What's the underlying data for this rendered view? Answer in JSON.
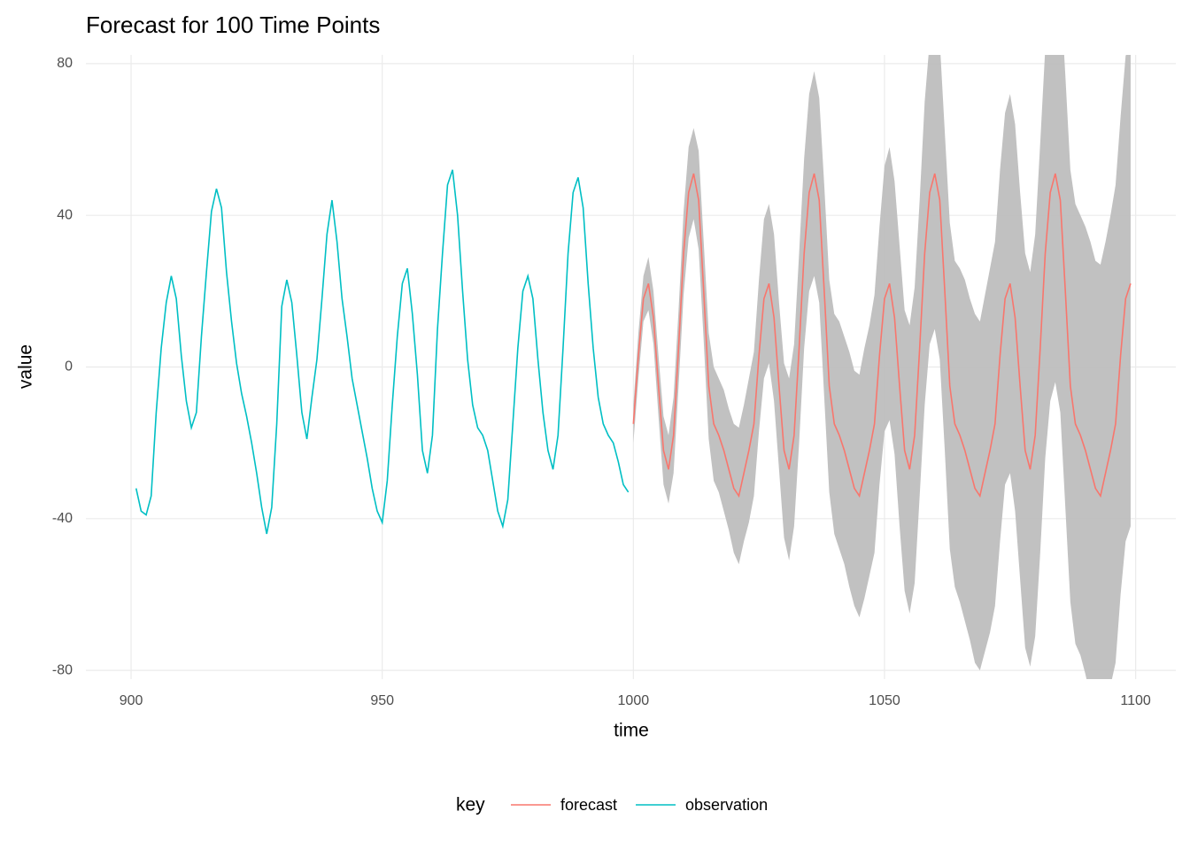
{
  "chart_data": {
    "type": "line",
    "title": "Forecast for 100 Time Points",
    "x_label": "time",
    "y_label": "value",
    "legend_title": "key",
    "grid": true,
    "legend": "bottom",
    "xlim": [
      891,
      1108
    ],
    "ylim": [
      -82.3,
      82.3
    ],
    "xticks": [
      900,
      950,
      1000,
      1050,
      1100
    ],
    "yticks": [
      -80,
      -40,
      0,
      40,
      80
    ],
    "band_color": "#bebebe",
    "series": [
      {
        "name": "forecast",
        "color": "#F8766D",
        "x": [
          1000,
          1001,
          1002,
          1003,
          1004,
          1005,
          1006,
          1007,
          1008,
          1009,
          1010,
          1011,
          1012,
          1013,
          1014,
          1015,
          1016,
          1017,
          1018,
          1019,
          1020,
          1021,
          1022,
          1023,
          1024,
          1025,
          1026,
          1027,
          1028,
          1029,
          1030,
          1031,
          1032,
          1033,
          1034,
          1035,
          1036,
          1037,
          1038,
          1039,
          1040,
          1041,
          1042,
          1043,
          1044,
          1045,
          1046,
          1047,
          1048,
          1049,
          1050,
          1051,
          1052,
          1053,
          1054,
          1055,
          1056,
          1057,
          1058,
          1059,
          1060,
          1061,
          1062,
          1063,
          1064,
          1065,
          1066,
          1067,
          1068,
          1069,
          1070,
          1071,
          1072,
          1073,
          1074,
          1075,
          1076,
          1077,
          1078,
          1079,
          1080,
          1081,
          1082,
          1083,
          1084,
          1085,
          1086,
          1087,
          1088,
          1089,
          1090,
          1091,
          1092,
          1093,
          1094,
          1095,
          1096,
          1097,
          1098,
          1099
        ],
        "values": [
          -15,
          3,
          18,
          22,
          13,
          -5,
          -22,
          -27,
          -18,
          5,
          30,
          46,
          51,
          44,
          20,
          -5,
          -15,
          -18,
          -22,
          -27,
          -32,
          -34,
          -28,
          -22,
          -15,
          3,
          18,
          22,
          13,
          -5,
          -22,
          -27,
          -18,
          5,
          30,
          46,
          51,
          44,
          20,
          -5,
          -15,
          -18,
          -22,
          -27,
          -32,
          -34,
          -28,
          -22,
          -15,
          3,
          18,
          22,
          13,
          -5,
          -22,
          -27,
          -18,
          5,
          30,
          46,
          51,
          44,
          20,
          -5,
          -15,
          -18,
          -22,
          -27,
          -32,
          -34,
          -28,
          -22,
          -15,
          3,
          18,
          22,
          13,
          -5,
          -22,
          -27,
          -18,
          5,
          30,
          46,
          51,
          44,
          20,
          -5,
          -15,
          -18,
          -22,
          -27,
          -32,
          -34,
          -28,
          -22,
          -15,
          3,
          18,
          22
        ],
        "lower": [
          -20,
          -3,
          12,
          15,
          6,
          -13,
          -31,
          -36,
          -28,
          -5,
          19,
          34,
          39,
          31,
          7,
          -19,
          -30,
          -33,
          -38,
          -43,
          -49,
          -52,
          -46,
          -41,
          -34,
          -17,
          -3,
          1,
          -9,
          -27,
          -45,
          -51,
          -42,
          -20,
          5,
          20,
          24,
          17,
          -8,
          -33,
          -44,
          -48,
          -52,
          -58,
          -63,
          -66,
          -61,
          -55,
          -49,
          -31,
          -17,
          -14,
          -23,
          -42,
          -59,
          -65,
          -57,
          -34,
          -10,
          6,
          10,
          2,
          -22,
          -48,
          -58,
          -62,
          -67,
          -72,
          -78,
          -80,
          -75,
          -70,
          -63,
          -46,
          -31,
          -28,
          -38,
          -56,
          -74,
          -79,
          -71,
          -49,
          -24,
          -9,
          -4,
          -12,
          -37,
          -62,
          -73,
          -76,
          -81,
          -87,
          -92,
          -95,
          -89,
          -84,
          -78,
          -60,
          -46,
          -42
        ],
        "upper": [
          -10,
          9,
          24,
          29,
          20,
          3,
          -13,
          -18,
          -8,
          15,
          41,
          58,
          63,
          57,
          33,
          9,
          0,
          -3,
          -6,
          -11,
          -15,
          -16,
          -10,
          -3,
          4,
          23,
          39,
          43,
          35,
          17,
          1,
          -3,
          6,
          30,
          55,
          72,
          78,
          71,
          48,
          23,
          14,
          12,
          8,
          4,
          -1,
          -2,
          5,
          11,
          19,
          37,
          53,
          58,
          49,
          32,
          15,
          11,
          21,
          44,
          70,
          86,
          92,
          86,
          62,
          38,
          28,
          26,
          23,
          18,
          14,
          12,
          19,
          26,
          33,
          52,
          67,
          72,
          64,
          46,
          30,
          25,
          35,
          59,
          84,
          101,
          106,
          100,
          77,
          52,
          43,
          40,
          37,
          33,
          28,
          27,
          33,
          40,
          48,
          66,
          82,
          86
        ]
      },
      {
        "name": "observation",
        "color": "#00BFC4",
        "x": [
          901,
          902,
          903,
          904,
          905,
          906,
          907,
          908,
          909,
          910,
          911,
          912,
          913,
          914,
          915,
          916,
          917,
          918,
          919,
          920,
          921,
          922,
          923,
          924,
          925,
          926,
          927,
          928,
          929,
          930,
          931,
          932,
          933,
          934,
          935,
          936,
          937,
          938,
          939,
          940,
          941,
          942,
          943,
          944,
          945,
          946,
          947,
          948,
          949,
          950,
          951,
          952,
          953,
          954,
          955,
          956,
          957,
          958,
          959,
          960,
          961,
          962,
          963,
          964,
          965,
          966,
          967,
          968,
          969,
          970,
          971,
          972,
          973,
          974,
          975,
          976,
          977,
          978,
          979,
          980,
          981,
          982,
          983,
          984,
          985,
          986,
          987,
          988,
          989,
          990,
          991,
          992,
          993,
          994,
          995,
          996,
          997,
          998,
          999
        ],
        "values": [
          -32,
          -38,
          -39,
          -34,
          -12,
          5,
          17,
          24,
          18,
          3,
          -9,
          -16,
          -12,
          8,
          25,
          41,
          47,
          42,
          25,
          12,
          1,
          -7,
          -13,
          -20,
          -28,
          -37,
          -44,
          -37,
          -15,
          16,
          23,
          17,
          3,
          -12,
          -19,
          -8,
          2,
          18,
          35,
          44,
          33,
          18,
          8,
          -3,
          -10,
          -17,
          -24,
          -32,
          -38,
          -41,
          -30,
          -10,
          8,
          22,
          26,
          14,
          -2,
          -22,
          -28,
          -18,
          10,
          30,
          48,
          52,
          40,
          20,
          2,
          -10,
          -16,
          -18,
          -22,
          -30,
          -38,
          -42,
          -35,
          -15,
          5,
          20,
          24,
          18,
          2,
          -12,
          -22,
          -27,
          -18,
          5,
          30,
          46,
          50,
          42,
          22,
          5,
          -8,
          -15,
          -18,
          -20,
          -25,
          -31,
          -33
        ]
      }
    ]
  }
}
